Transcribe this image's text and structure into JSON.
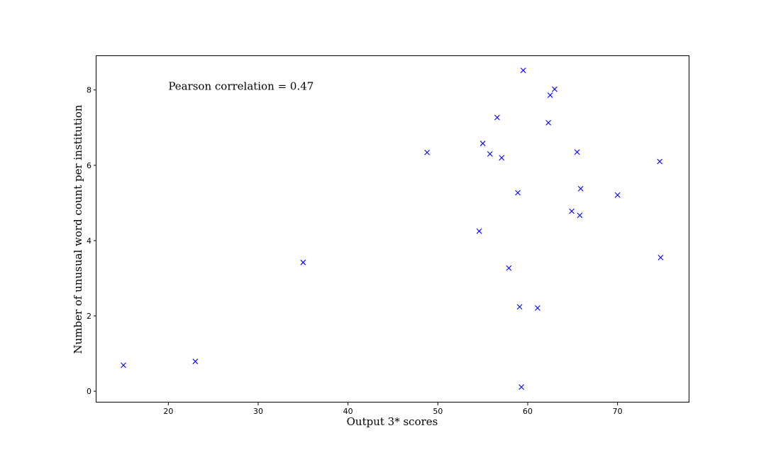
{
  "chart_data": {
    "type": "scatter",
    "title": "",
    "xlabel": "Output 3* scores",
    "ylabel": "Number of unusual word count per institution",
    "xlim": [
      12,
      78
    ],
    "ylim": [
      -0.3,
      8.9
    ],
    "xticks": [
      20,
      30,
      40,
      50,
      60,
      70
    ],
    "yticks": [
      0,
      2,
      4,
      6,
      8
    ],
    "grid": false,
    "legend": "none",
    "marker": "x",
    "marker_color": "#0000ff",
    "annotation": "Pearson correlation = 0.47",
    "annotation_anchor": [
      20,
      8.0
    ],
    "series": [
      {
        "x": [
          15.0,
          23.0,
          35.0,
          48.8,
          54.6,
          55.0,
          55.8,
          56.6,
          57.1,
          57.9,
          58.9,
          59.1,
          59.3,
          59.5,
          61.1,
          62.3,
          62.5,
          63.0,
          64.9,
          65.5,
          65.8,
          65.9,
          70.0,
          74.7,
          74.8
        ],
        "y": [
          0.69,
          0.79,
          3.42,
          6.34,
          4.25,
          6.58,
          6.3,
          7.27,
          6.2,
          3.27,
          5.27,
          2.24,
          0.11,
          8.52,
          2.21,
          7.13,
          7.86,
          8.02,
          4.78,
          6.35,
          4.67,
          5.38,
          5.21,
          6.1,
          3.55
        ]
      }
    ]
  }
}
